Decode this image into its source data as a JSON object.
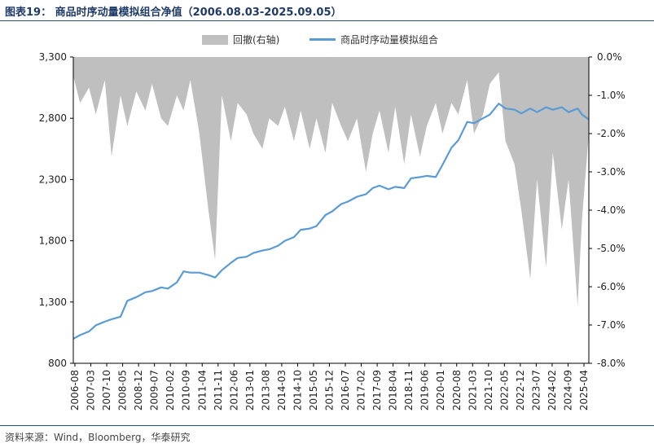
{
  "header": {
    "title": "图表19：  商品时序动量模拟组合净值（2006.08.03-2025.09.05）"
  },
  "footer": {
    "source": "资料来源：Wind，Bloomberg，华泰研究"
  },
  "colors": {
    "drawdown_fill": "#bfbfbf",
    "nav_line": "#5b9bd5",
    "title": "#1f3b66",
    "rule": "#2a4d7a"
  },
  "chart_data": {
    "type": "line",
    "legend_position": "top",
    "grid": false,
    "title": "",
    "x_tick_labels": [
      "2006-08",
      "2007-03",
      "2007-10",
      "2008-05",
      "2008-12",
      "2009-07",
      "2010-02",
      "2010-09",
      "2011-04",
      "2011-11",
      "2012-06",
      "2013-01",
      "2013-08",
      "2014-03",
      "2014-10",
      "2015-05",
      "2015-12",
      "2016-07",
      "2017-02",
      "2017-09",
      "2018-04",
      "2018-11",
      "2019-06",
      "2020-01",
      "2020-08",
      "2021-03",
      "2021-10",
      "2022-05",
      "2022-12",
      "2023-07",
      "2024-02",
      "2024-09",
      "2025-04"
    ],
    "y_left": {
      "ylim": [
        800,
        3300
      ],
      "ticks": [
        800,
        1300,
        1800,
        2300,
        2800,
        3300
      ],
      "tick_labels": [
        "800",
        "1,300",
        "1,800",
        "2,300",
        "2,800",
        "3,300"
      ]
    },
    "y_right": {
      "ylim": [
        -8.0,
        0.0
      ],
      "ticks": [
        0,
        -1,
        -2,
        -3,
        -4,
        -5,
        -6,
        -7,
        -8
      ],
      "tick_labels": [
        "0.0%",
        "-1.0%",
        "-2.0%",
        "-3.0%",
        "-4.0%",
        "-5.0%",
        "-6.0%",
        "-7.0%",
        "-8.0%"
      ]
    },
    "series": [
      {
        "name": "回撤(右轴)",
        "kind": "area",
        "axis": "right",
        "x": [
          "2006-08",
          "2006-11",
          "2007-03",
          "2007-06",
          "2007-10",
          "2008-01",
          "2008-05",
          "2008-08",
          "2008-12",
          "2009-04",
          "2009-07",
          "2009-11",
          "2010-02",
          "2010-06",
          "2010-09",
          "2010-12",
          "2011-04",
          "2011-08",
          "2011-11",
          "2012-02",
          "2012-06",
          "2012-09",
          "2013-01",
          "2013-04",
          "2013-08",
          "2013-11",
          "2014-03",
          "2014-06",
          "2014-10",
          "2015-01",
          "2015-05",
          "2015-08",
          "2015-12",
          "2016-03",
          "2016-07",
          "2016-10",
          "2017-02",
          "2017-06",
          "2017-09",
          "2017-12",
          "2018-04",
          "2018-07",
          "2018-11",
          "2019-02",
          "2019-06",
          "2019-09",
          "2020-01",
          "2020-04",
          "2020-08",
          "2020-11",
          "2021-03",
          "2021-06",
          "2021-10",
          "2022-01",
          "2022-05",
          "2022-08",
          "2022-12",
          "2023-03",
          "2023-07",
          "2023-10",
          "2024-02",
          "2024-05",
          "2024-09",
          "2024-12",
          "2025-04",
          "2025-06",
          "2025-09"
        ],
        "values": [
          -0.5,
          -1.2,
          -0.8,
          -1.5,
          -0.6,
          -2.6,
          -1.0,
          -1.8,
          -0.9,
          -1.4,
          -0.7,
          -1.6,
          -1.8,
          -1.0,
          -1.4,
          -0.6,
          -2.0,
          -4.0,
          -5.3,
          -1.0,
          -2.2,
          -1.2,
          -1.5,
          -2.0,
          -2.4,
          -1.6,
          -1.8,
          -1.3,
          -2.2,
          -1.4,
          -2.4,
          -1.6,
          -2.5,
          -1.2,
          -1.8,
          -2.2,
          -1.6,
          -3.0,
          -2.0,
          -1.4,
          -2.5,
          -1.3,
          -2.8,
          -1.5,
          -2.6,
          -1.8,
          -1.2,
          -2.0,
          -1.2,
          -1.5,
          -0.6,
          -2.0,
          -1.5,
          -0.7,
          -0.4,
          -2.2,
          -2.8,
          -4.0,
          -5.8,
          -3.2,
          -5.5,
          -2.5,
          -4.5,
          -3.2,
          -6.5,
          -4.2,
          -2.0
        ]
      },
      {
        "name": "商品时序动量模拟组合",
        "kind": "line",
        "axis": "left",
        "x": [
          "2006-08",
          "2006-11",
          "2007-03",
          "2007-06",
          "2007-10",
          "2008-01",
          "2008-05",
          "2008-08",
          "2008-12",
          "2009-04",
          "2009-07",
          "2009-11",
          "2010-02",
          "2010-06",
          "2010-09",
          "2010-12",
          "2011-04",
          "2011-08",
          "2011-11",
          "2012-02",
          "2012-06",
          "2012-09",
          "2013-01",
          "2013-04",
          "2013-08",
          "2013-11",
          "2014-03",
          "2014-06",
          "2014-10",
          "2015-01",
          "2015-05",
          "2015-08",
          "2015-12",
          "2016-03",
          "2016-07",
          "2016-10",
          "2017-02",
          "2017-06",
          "2017-09",
          "2017-12",
          "2018-04",
          "2018-07",
          "2018-11",
          "2019-02",
          "2019-06",
          "2019-09",
          "2020-01",
          "2020-04",
          "2020-08",
          "2020-11",
          "2021-03",
          "2021-06",
          "2021-10",
          "2022-01",
          "2022-05",
          "2022-08",
          "2022-12",
          "2023-03",
          "2023-07",
          "2023-10",
          "2024-02",
          "2024-05",
          "2024-09",
          "2024-12",
          "2025-04",
          "2025-06",
          "2025-09"
        ],
        "values": [
          1000,
          1030,
          1060,
          1110,
          1140,
          1160,
          1180,
          1310,
          1340,
          1380,
          1390,
          1420,
          1410,
          1460,
          1550,
          1540,
          1540,
          1520,
          1500,
          1560,
          1620,
          1660,
          1670,
          1700,
          1720,
          1730,
          1760,
          1800,
          1830,
          1890,
          1900,
          1920,
          2010,
          2040,
          2100,
          2120,
          2160,
          2180,
          2230,
          2250,
          2220,
          2240,
          2230,
          2310,
          2320,
          2330,
          2320,
          2420,
          2560,
          2620,
          2770,
          2760,
          2800,
          2830,
          2920,
          2880,
          2870,
          2840,
          2880,
          2850,
          2890,
          2870,
          2890,
          2850,
          2880,
          2830,
          2790
        ]
      }
    ]
  }
}
